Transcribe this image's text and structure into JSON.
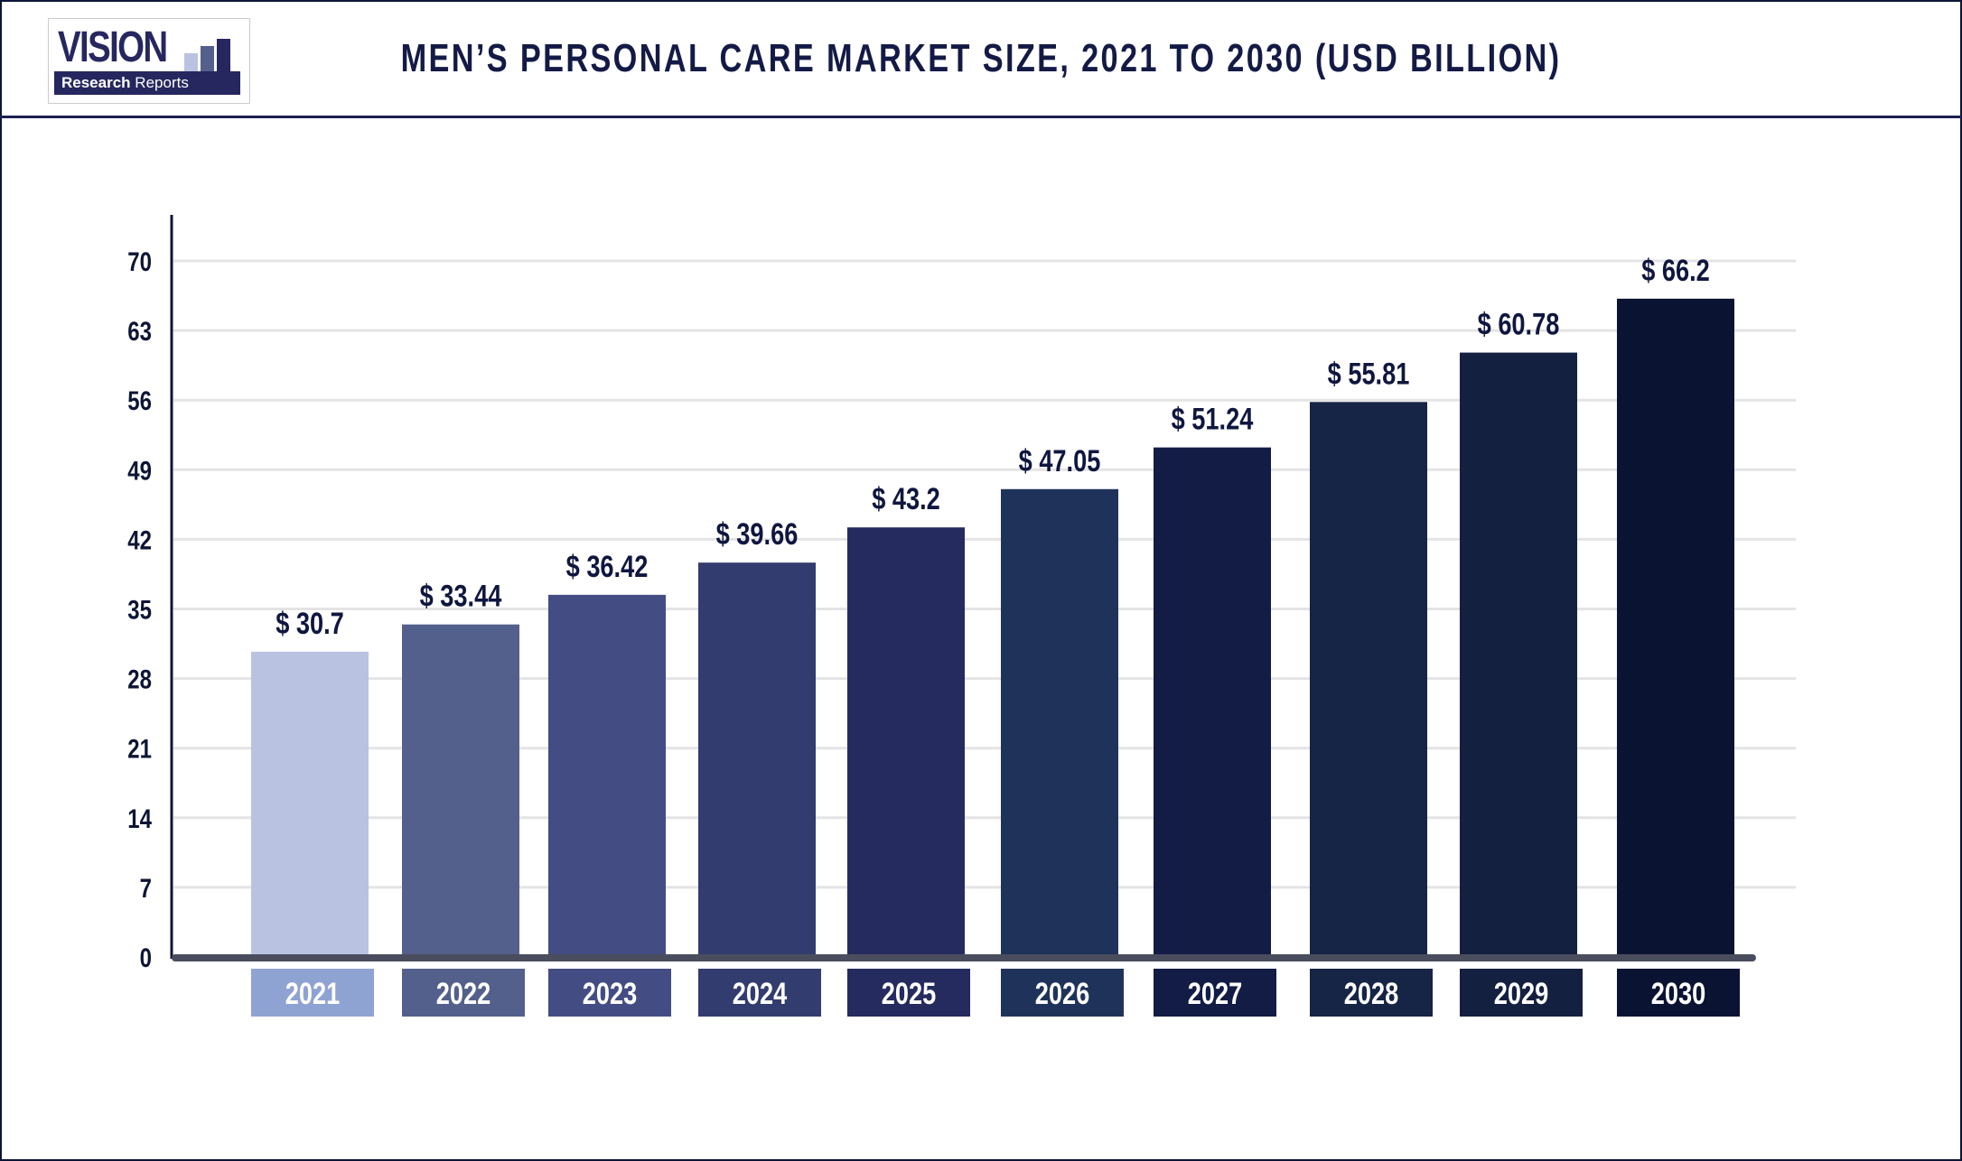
{
  "header": {
    "logo_text": "VISION",
    "logo_subtext_bold": "Research",
    "logo_subtext": "Reports",
    "title": "MEN’S PERSONAL CARE MARKET SIZE, 2021 TO 2030 (USD BILLION)"
  },
  "chart_data": {
    "type": "bar",
    "title": "MEN’S PERSONAL CARE MARKET SIZE, 2021 TO 2030 (USD BILLION)",
    "categories": [
      "2021",
      "2022",
      "2023",
      "2024",
      "2025",
      "2026",
      "2027",
      "2028",
      "2029",
      "2030"
    ],
    "values": [
      30.7,
      33.44,
      36.42,
      39.66,
      43.2,
      47.05,
      51.24,
      55.81,
      60.78,
      66.2
    ],
    "data_labels": [
      "$ 30.7",
      "$ 33.44",
      "$ 36.42",
      "$ 39.66",
      "$ 43.2",
      "$ 47.05",
      "$ 51.24",
      "$ 55.81",
      "$ 60.78",
      "$ 66.2"
    ],
    "yticks": [
      0,
      7,
      14,
      21,
      28,
      35,
      42,
      49,
      56,
      63,
      70
    ],
    "ylim": [
      0,
      70
    ],
    "grid": true,
    "bar_colors": [
      "#b9c3e1",
      "#53608c",
      "#434d83",
      "#323c6e",
      "#252a5f",
      "#1f335a",
      "#121c45",
      "#162445",
      "#142040",
      "#0b1333"
    ],
    "label_colors": [
      "#8fa3d3",
      "#53608c",
      "#434d83",
      "#323c6e",
      "#252a5f",
      "#1f335a",
      "#121c45",
      "#162445",
      "#142040",
      "#0b1333"
    ]
  }
}
